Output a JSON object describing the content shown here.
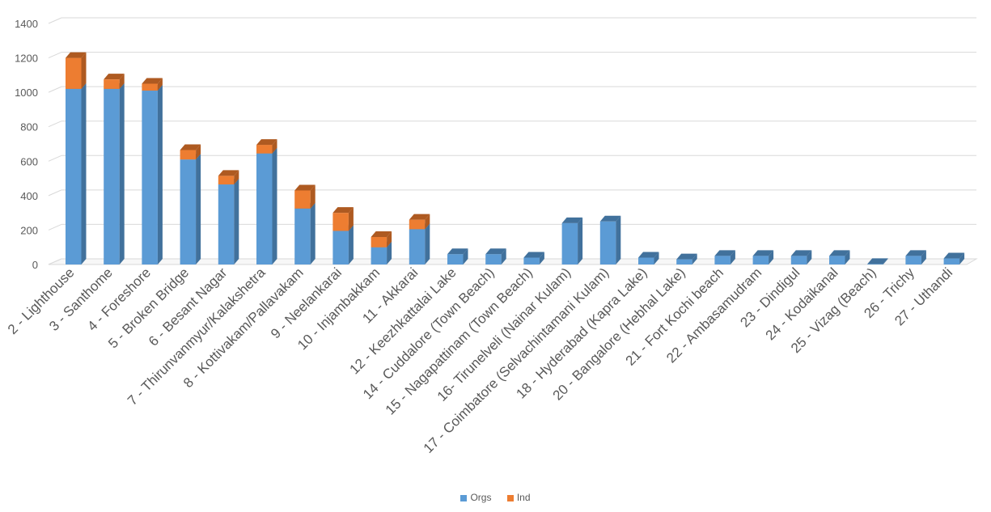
{
  "chart_data": {
    "type": "bar",
    "stacked": true,
    "three_d": true,
    "ylim": [
      0,
      1400
    ],
    "yticks": [
      0,
      200,
      400,
      600,
      800,
      1000,
      1200,
      1400
    ],
    "grid": true,
    "legend_position": "bottom",
    "categories": [
      "2 - Lighthouse",
      "3 - Santhome",
      "4 - Foreshore",
      "5 - Broken Bridge",
      "6 - Besant Nagar",
      "7 - Thirunvanmyur/Kalakshetra",
      "8 - Kottivakam/Pallavakam",
      "9 - Neelankarai",
      "10 - Injambakkam",
      "11 - Akkarai",
      "12 - Keezhkattalai Lake",
      "14 - Cuddalore (Town Beach)",
      "15 - Nagapattinam (Town Beach)",
      "16- Tirunelveli (Nainar Kulam)",
      "17 - Coimbatore (Selvachintamani Kulam)",
      "18 - Hyderabad (Kapra Lake)",
      "20 - Bangalore (Hebhal Lake)",
      "21 - Fort Kochi beach",
      "22 - Ambasamudram",
      "23 - Dindigul",
      "24 - Kodaikanal",
      "25 - Vizag (Beach)",
      "26 - Trichy",
      "27 - Uthandi"
    ],
    "series": [
      {
        "name": "Orgs",
        "color": "#5B9BD5",
        "side_color": "#41719C",
        "values": [
          1020,
          1020,
          1010,
          610,
          465,
          645,
          325,
          195,
          100,
          205,
          60,
          60,
          40,
          240,
          250,
          40,
          30,
          50,
          50,
          50,
          50,
          3,
          50,
          35
        ]
      },
      {
        "name": "Ind",
        "color": "#ED7D31",
        "side_color": "#AE5A21",
        "values": [
          180,
          55,
          40,
          55,
          50,
          50,
          105,
          105,
          60,
          55,
          0,
          0,
          0,
          0,
          0,
          0,
          0,
          0,
          0,
          0,
          0,
          0,
          0,
          0
        ]
      }
    ]
  }
}
